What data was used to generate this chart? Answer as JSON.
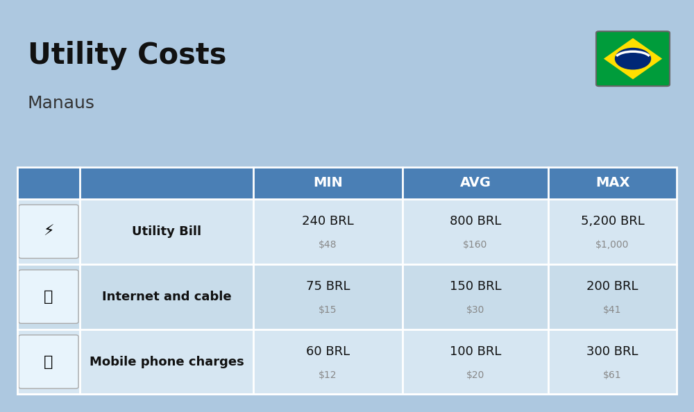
{
  "title": "Utility Costs",
  "subtitle": "Manaus",
  "background_color": "#adc8e0",
  "header_color": "#4a7fb5",
  "header_text_color": "#ffffff",
  "row_colors": [
    "#d6e6f2",
    "#c8dcea"
  ],
  "table_border_color": "#ffffff",
  "columns": [
    "",
    "",
    "MIN",
    "AVG",
    "MAX"
  ],
  "rows": [
    {
      "label": "Utility Bill",
      "min_brl": "240 BRL",
      "min_usd": "$48",
      "avg_brl": "800 BRL",
      "avg_usd": "$160",
      "max_brl": "5,200 BRL",
      "max_usd": "$1,000"
    },
    {
      "label": "Internet and cable",
      "min_brl": "75 BRL",
      "min_usd": "$15",
      "avg_brl": "150 BRL",
      "avg_usd": "$30",
      "max_brl": "200 BRL",
      "max_usd": "$41"
    },
    {
      "label": "Mobile phone charges",
      "min_brl": "60 BRL",
      "min_usd": "$12",
      "avg_brl": "100 BRL",
      "avg_usd": "$20",
      "max_brl": "300 BRL",
      "max_usd": "$61"
    }
  ],
  "flag_colors": {
    "green": "#009c3b",
    "yellow": "#ffdf00",
    "blue": "#002776",
    "white": "#ffffff"
  }
}
